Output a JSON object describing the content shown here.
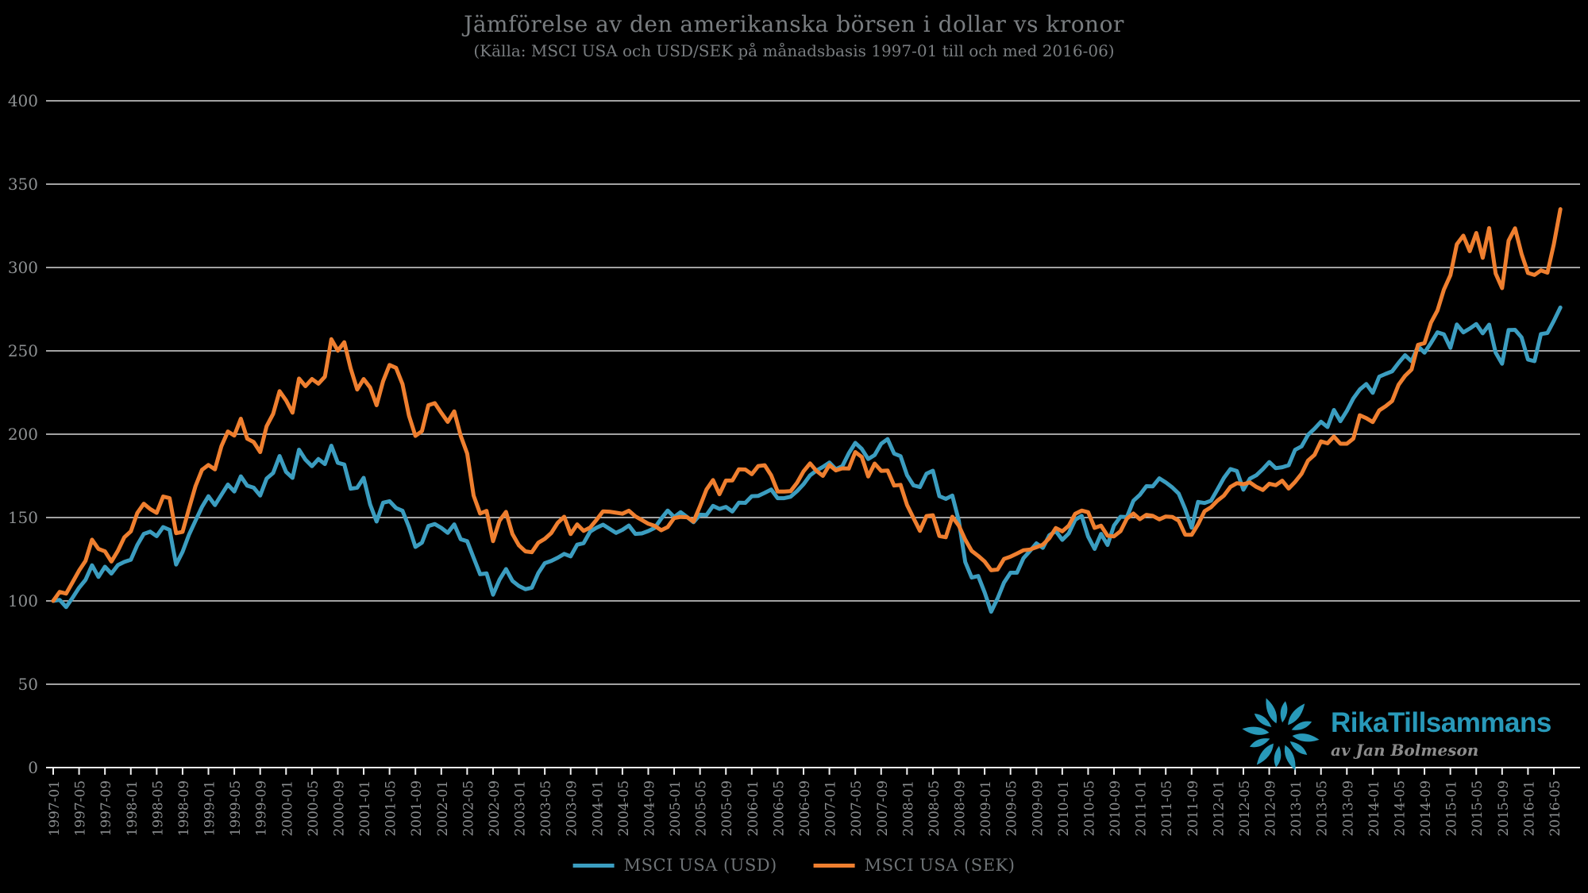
{
  "title": "Jämförelse av den amerikanska börsen i dollar vs kronor",
  "subtitle": "(Källa: MSCI USA och USD/SEK på månadsbasis 1997-01 till och med 2016-06)",
  "legend": {
    "usd": "MSCI USA (USD)",
    "sek": "MSCI USA (SEK)"
  },
  "logo": {
    "brand": "RikaTillsammans",
    "byline": "av Jan Bolmeson"
  },
  "colors": {
    "background": "#000000",
    "usd_line": "#3B9DC0",
    "sek_line": "#EF7F2F",
    "grid": "#D8D8D8",
    "axis": "#F0F0F0",
    "tick_label": "#8E9193",
    "title_text": "#797D80",
    "legend_text": "#6E7376",
    "brand_teal": "#2899B9",
    "byline_gray": "#8C8C8C"
  },
  "chart_data": {
    "type": "line",
    "title": "Jämförelse av den amerikanska börsen i dollar vs kronor",
    "subtitle": "(Källa: MSCI USA och USD/SEK på månadsbasis 1997-01 till och med 2016-06)",
    "frequency": "monthly",
    "x_start": "1997-01",
    "x_end": "2016-06",
    "ylim": [
      0,
      400
    ],
    "grid": true,
    "legend_position": "bottom-center",
    "y_ticks": [
      0,
      50,
      100,
      150,
      200,
      250,
      300,
      350,
      400
    ],
    "x_tick_labels": [
      "1997-01",
      "1997-05",
      "1997-09",
      "1998-01",
      "1998-05",
      "1998-09",
      "1999-01",
      "1999-05",
      "1999-09",
      "2000-01",
      "2000-05",
      "2000-09",
      "2001-01",
      "2001-05",
      "2001-09",
      "2002-01",
      "2002-05",
      "2002-09",
      "2003-01",
      "2003-05",
      "2003-09",
      "2004-01",
      "2004-05",
      "2004-09",
      "2005-01",
      "2005-05",
      "2005-09",
      "2006-01",
      "2006-05",
      "2006-09",
      "2007-01",
      "2007-05",
      "2007-09",
      "2008-01",
      "2008-05",
      "2008-09",
      "2009-01",
      "2009-05",
      "2009-09",
      "2010-01",
      "2010-05",
      "2010-09",
      "2011-01",
      "2011-05",
      "2011-09",
      "2012-01",
      "2012-05",
      "2012-09",
      "2013-01",
      "2013-05",
      "2013-09",
      "2014-01",
      "2014-05",
      "2014-09",
      "2015-01",
      "2015-05",
      "2015-09",
      "2016-01",
      "2016-05"
    ],
    "series": [
      {
        "name": "MSCI USA (USD)",
        "color_key": "usd_line",
        "values": [
          100.0,
          100.6,
          96.3,
          101.9,
          107.9,
          112.6,
          121.4,
          114.4,
          120.5,
          116.4,
          121.5,
          123.4,
          124.7,
          133.5,
          140.2,
          141.5,
          138.8,
          144.3,
          142.6,
          121.8,
          129.4,
          139.8,
          148.1,
          156.4,
          162.8,
          157.5,
          163.6,
          169.8,
          165.6,
          174.7,
          169.1,
          167.9,
          163.2,
          173.4,
          176.7,
          186.9,
          177.4,
          173.8,
          190.7,
          184.7,
          180.8,
          185.1,
          182.1,
          193.1,
          182.8,
          181.8,
          167.3,
          167.9,
          173.8,
          157.8,
          147.6,
          158.9,
          159.8,
          155.7,
          154.1,
          144.3,
          132.4,
          134.9,
          144.9,
          146.1,
          143.8,
          140.8,
          145.9,
          137.0,
          135.8,
          125.9,
          116.0,
          116.5,
          103.7,
          112.7,
          119.1,
          112.0,
          108.9,
          107.0,
          107.9,
          116.7,
          122.6,
          124.0,
          125.9,
          128.2,
          126.7,
          133.7,
          134.6,
          141.5,
          143.9,
          145.7,
          143.3,
          140.8,
          142.6,
          145.2,
          140.2,
          140.5,
          141.9,
          143.8,
          149.4,
          154.2,
          150.3,
          153.2,
          150.3,
          147.2,
          151.7,
          151.5,
          157.0,
          155.2,
          156.4,
          153.6,
          158.9,
          158.8,
          162.8,
          163.0,
          164.8,
          166.8,
          161.6,
          161.6,
          162.5,
          165.9,
          170.0,
          175.3,
          178.2,
          180.4,
          183.0,
          179.0,
          180.8,
          188.5,
          194.8,
          191.2,
          185.1,
          187.5,
          194.3,
          197.1,
          188.4,
          186.8,
          175.4,
          169.3,
          168.3,
          176.3,
          178.1,
          162.8,
          161.2,
          163.2,
          148.3,
          123.3,
          114.0,
          114.9,
          105.1,
          93.5,
          101.5,
          111.1,
          116.9,
          116.9,
          125.6,
          129.9,
          134.5,
          131.8,
          139.4,
          141.9,
          136.6,
          140.5,
          148.7,
          151.0,
          138.5,
          131.2,
          140.2,
          133.5,
          145.2,
          150.5,
          150.3,
          160.1,
          163.6,
          168.8,
          168.7,
          173.5,
          171.1,
          168.1,
          164.4,
          155.1,
          143.9,
          159.4,
          158.7,
          160.1,
          166.9,
          173.8,
          179.1,
          177.9,
          166.7,
          173.3,
          175.4,
          179.0,
          183.3,
          179.6,
          180.2,
          181.4,
          190.6,
          192.7,
          199.6,
          203.3,
          207.5,
          204.3,
          214.5,
          207.8,
          214.0,
          221.5,
          226.8,
          230.1,
          224.8,
          234.5,
          236.2,
          237.7,
          242.8,
          247.4,
          243.7,
          252.8,
          248.9,
          254.7,
          261.1,
          259.9,
          251.8,
          265.8,
          261.1,
          263.4,
          266.1,
          260.5,
          265.7,
          248.9,
          242.3,
          262.5,
          262.6,
          258.1,
          244.8,
          243.8,
          260.1,
          260.7,
          268.0,
          276.0
        ]
      },
      {
        "name": "MSCI USA (SEK)",
        "color_key": "sek_line",
        "values": [
          100.0,
          105.4,
          104.4,
          111.2,
          118.2,
          124.0,
          136.7,
          131.2,
          129.7,
          123.6,
          130.1,
          138.2,
          141.7,
          152.7,
          158.3,
          155.1,
          152.8,
          162.6,
          161.6,
          140.6,
          141.4,
          155.5,
          168.8,
          178.6,
          181.5,
          178.9,
          192.7,
          201.6,
          199.2,
          209.3,
          197.3,
          195.3,
          189.3,
          204.8,
          212.2,
          225.8,
          220.3,
          212.9,
          233.4,
          228.8,
          233.1,
          230.3,
          234.5,
          257.0,
          250.1,
          255.2,
          239.4,
          226.8,
          233.1,
          228.0,
          217.4,
          231.8,
          241.5,
          239.8,
          230.1,
          211.1,
          199.0,
          201.8,
          217.4,
          218.6,
          212.8,
          207.4,
          213.7,
          199.1,
          188.4,
          163.2,
          152.4,
          154.0,
          135.8,
          148.1,
          153.4,
          140.1,
          133.3,
          129.7,
          129.2,
          134.9,
          137.2,
          140.7,
          146.8,
          150.5,
          140.1,
          145.9,
          142.0,
          144.0,
          148.6,
          153.7,
          153.5,
          152.9,
          152.3,
          154.1,
          150.7,
          148.5,
          146.3,
          145.0,
          142.4,
          144.3,
          149.7,
          150.4,
          150.2,
          147.6,
          156.9,
          166.8,
          172.5,
          164.0,
          172.2,
          172.3,
          178.9,
          178.8,
          176.0,
          180.9,
          181.4,
          175.3,
          165.6,
          165.6,
          165.8,
          170.9,
          177.7,
          182.5,
          178.0,
          175.0,
          181.5,
          178.3,
          179.5,
          179.4,
          189.3,
          186.4,
          174.6,
          182.4,
          178.0,
          178.2,
          169.2,
          169.6,
          157.5,
          149.7,
          142.0,
          150.9,
          151.4,
          138.9,
          138.2,
          150.5,
          145.2,
          136.7,
          130.0,
          127.0,
          123.6,
          118.4,
          118.8,
          125.2,
          126.5,
          128.4,
          130.4,
          130.8,
          132.2,
          133.7,
          137.6,
          143.7,
          141.7,
          145.1,
          152.3,
          154.2,
          153.2,
          143.8,
          145.1,
          139.1,
          138.7,
          141.8,
          149.4,
          152.4,
          149.0,
          151.6,
          151.0,
          148.9,
          150.6,
          150.4,
          148.1,
          139.7,
          139.6,
          145.9,
          153.8,
          156.2,
          160.2,
          163.2,
          168.4,
          170.6,
          170.0,
          171.1,
          168.4,
          166.5,
          170.3,
          169.4,
          172.1,
          167.4,
          171.4,
          176.3,
          184.2,
          187.6,
          195.7,
          194.5,
          198.6,
          194.3,
          194.3,
          197.4,
          211.4,
          209.6,
          207.3,
          214.3,
          216.8,
          219.9,
          229.7,
          235.0,
          238.8,
          253.6,
          254.6,
          266.9,
          274.2,
          286.7,
          295.4,
          313.9,
          319.1,
          309.8,
          320.7,
          305.8,
          323.6,
          296.4,
          287.6,
          316.1,
          323.5,
          308.2,
          296.7,
          295.5,
          298.3,
          296.9,
          314.0,
          335.0
        ]
      }
    ]
  }
}
